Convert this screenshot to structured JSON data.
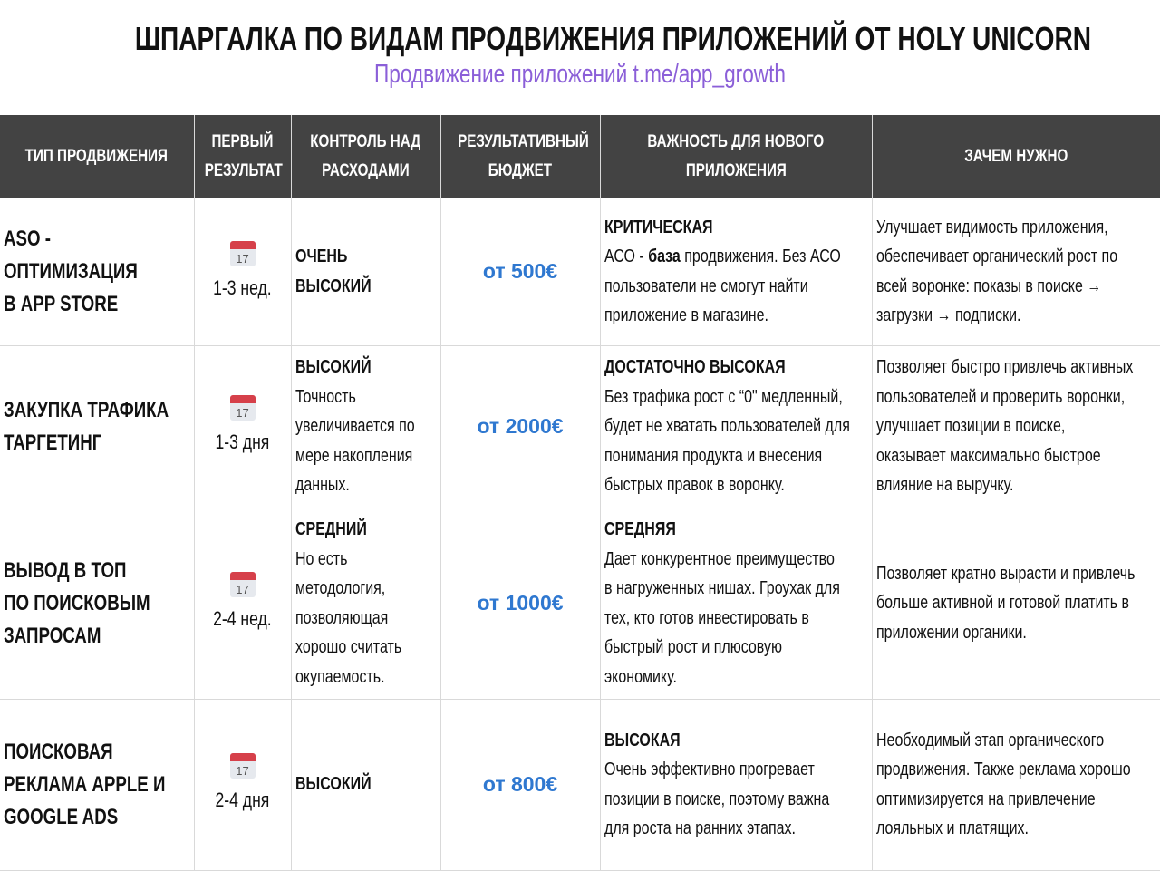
{
  "title": "ШПАРГАЛКА ПО ВИДАМ ПРОДВИЖЕНИЯ ПРИЛОЖЕНИЙ ОТ HOLY UNICORN",
  "subtitle": "Продвижение приложений t.me/app_growth",
  "colors": {
    "header_bg": "#434343",
    "price": "#2f78d0",
    "subtitle": "#8b5fd8"
  },
  "headers": [
    [
      "ТИП ПРОДВИЖЕНИЯ"
    ],
    [
      "ПЕРВЫЙ",
      "РЕЗУЛЬТАТ"
    ],
    [
      "КОНТРОЛЬ НАД",
      "РАСХОДАМИ"
    ],
    [
      "РЕЗУЛЬТАТИВНЫЙ",
      "БЮДЖЕТ"
    ],
    [
      "ВАЖНОСТЬ ДЛЯ НОВОГО",
      "ПРИЛОЖЕНИЯ"
    ],
    [
      "ЗАЧЕМ НУЖНО"
    ]
  ],
  "calendar_icon": {
    "name": "calendar-icon",
    "day": "17"
  },
  "rows": [
    {
      "type": [
        "ASO -",
        "ОПТИМИЗАЦИЯ",
        "В APP STORE"
      ],
      "first": "1-3 нед.",
      "control_title": [
        "ОЧЕНЬ",
        "ВЫСОКИЙ"
      ],
      "control_text": [],
      "budget": "от 500€",
      "importance_title": "КРИТИЧЕСКАЯ",
      "importance_text": [
        [
          "АСО - ",
          "база",
          " продвижения. Без АСО"
        ],
        "пользователи не смогут найти",
        "приложение в магазине."
      ],
      "why": [
        "Улучшает видимость приложения,",
        "обеспечивает органический рост по",
        "всей воронке: показы в поиске →",
        "загрузки → подписки."
      ]
    },
    {
      "type": [
        "ЗАКУПКА ТРАФИКА",
        "ТАРГЕТИНГ"
      ],
      "first": "1-3 дня",
      "control_title": [
        "ВЫСОКИЙ"
      ],
      "control_text": [
        "Точность",
        "увеличивается по",
        "мере накопления",
        "данных."
      ],
      "budget": "от 2000€",
      "importance_title": "ДОСТАТОЧНО ВЫСОКАЯ",
      "importance_text": [
        "Без трафика рост с “0\" медленный,",
        "будет не хватать пользователей для",
        "понимания продукта и внесения",
        "быстрых правок в воронку."
      ],
      "why": [
        "Позволяет быстро привлечь активных",
        "пользователей и проверить воронки,",
        "улучшает позиции в поиске,",
        "оказывает максимально быстрое",
        "влияние на выручку."
      ]
    },
    {
      "type": [
        "ВЫВОД В ТОП",
        "ПО ПОИСКОВЫМ",
        "ЗАПРОСАМ"
      ],
      "first": "2-4 нед.",
      "control_title": [
        "СРЕДНИЙ"
      ],
      "control_text": [
        "Но есть",
        "методология,",
        "позволяющая",
        "хорошо считать",
        "окупаемость."
      ],
      "budget": "от 1000€",
      "importance_title": "СРЕДНЯЯ",
      "importance_text": [
        "Дает конкурентное преимущество",
        "в нагруженных нишах. Гроухак для",
        "тех, кто готов инвестировать в",
        "быстрый рост и плюсовую",
        "экономику."
      ],
      "why": [
        "Позволяет кратно вырасти и привлечь",
        "больше активной и готовой платить в",
        "приложении органики."
      ]
    },
    {
      "type": [
        "ПОИСКОВАЯ",
        "РЕКЛАМА APPLE И",
        "GOOGLE ADS"
      ],
      "first": "2-4 дня",
      "control_title": [
        "ВЫСОКИЙ"
      ],
      "control_text": [],
      "budget": "от 800€",
      "importance_title": "ВЫСОКАЯ",
      "importance_text": [
        "Очень эффективно прогревает",
        "позиции в поиске,  поэтому важна",
        "для роста на ранних этапах."
      ],
      "why": [
        "Необходимый этап органического",
        "продвижения. Также реклама хорошо",
        "оптимизируется на привлечение",
        "лояльных и платящих."
      ]
    }
  ]
}
